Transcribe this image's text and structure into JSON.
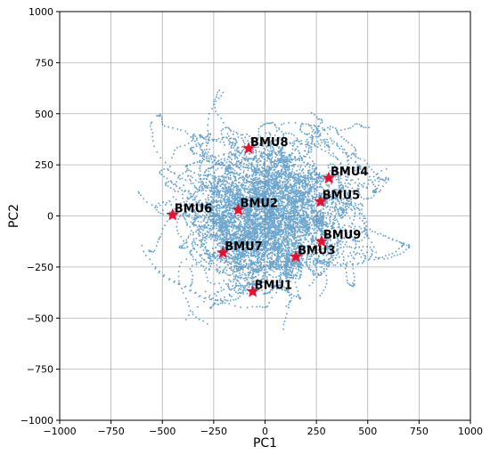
{
  "chart_data": {
    "type": "scatter",
    "xlabel": "PC1",
    "ylabel": "PC2",
    "xlim": [
      -1000,
      1000
    ],
    "ylim": [
      -1000,
      1000
    ],
    "xticks": [
      -1000,
      -750,
      -500,
      -250,
      0,
      250,
      500,
      750,
      1000
    ],
    "yticks": [
      -1000,
      -750,
      -500,
      -250,
      0,
      250,
      500,
      750,
      1000
    ],
    "grid": true,
    "colors": {
      "points": "#1f77b4",
      "markers": "#e8112d",
      "grid": "#b0b0b0"
    },
    "point_cloud": {
      "series_color": "#1f77b4",
      "x_range": [
        -850,
        910
      ],
      "y_range": [
        -650,
        650
      ],
      "center": [
        0,
        0
      ]
    },
    "markers": [
      {
        "label": "BMU1",
        "x": -60,
        "y": -370
      },
      {
        "label": "BMU2",
        "x": -130,
        "y": 30
      },
      {
        "label": "BMU3",
        "x": 150,
        "y": -200
      },
      {
        "label": "BMU4",
        "x": 310,
        "y": 185
      },
      {
        "label": "BMU5",
        "x": 270,
        "y": 70
      },
      {
        "label": "BMU6",
        "x": -450,
        "y": 5
      },
      {
        "label": "BMU7",
        "x": -205,
        "y": -180
      },
      {
        "label": "BMU8",
        "x": -80,
        "y": 330
      },
      {
        "label": "BMU9",
        "x": 275,
        "y": -125
      }
    ]
  }
}
